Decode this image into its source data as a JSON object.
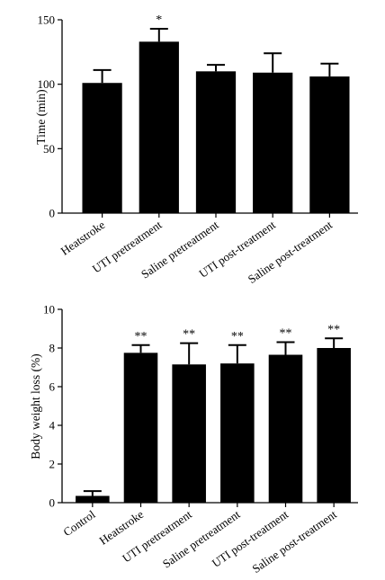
{
  "chart_data": [
    {
      "type": "bar",
      "categories": [
        "Heatstroke",
        "UTI pretreatment",
        "Saline pretreatment",
        "UTI post-treatment",
        "Saline post-treatment"
      ],
      "values": [
        101,
        133,
        110,
        109,
        106
      ],
      "error": [
        10,
        10,
        5,
        15,
        10
      ],
      "annotations": [
        "",
        "*",
        "",
        "",
        ""
      ],
      "ylabel": "Time (min)",
      "ylim": [
        0,
        150
      ],
      "yticks": [
        0,
        50,
        100,
        150
      ],
      "grid": false
    },
    {
      "type": "bar",
      "categories": [
        "Control",
        "Heatstroke",
        "UTI pretreatment",
        "Saline pretreatment",
        "UTI post-treatment",
        "Saline post-treatment"
      ],
      "values": [
        0.35,
        7.75,
        7.15,
        7.2,
        7.65,
        8.0
      ],
      "error": [
        0.25,
        0.4,
        1.1,
        0.95,
        0.65,
        0.5
      ],
      "annotations": [
        "",
        "**",
        "**",
        "**",
        "**",
        "**"
      ],
      "ylabel": "Body weight loss (%)",
      "ylim": [
        0,
        10
      ],
      "yticks": [
        0,
        2,
        4,
        6,
        8,
        10
      ],
      "grid": false
    }
  ]
}
